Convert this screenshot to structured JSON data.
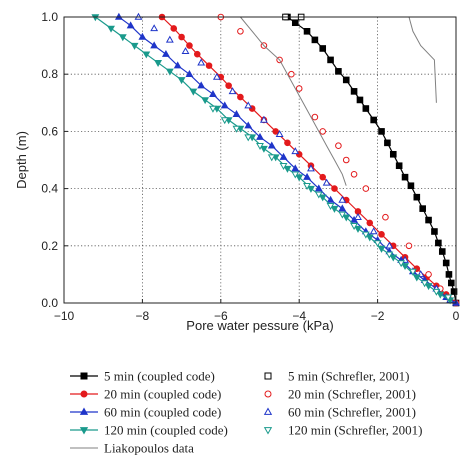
{
  "chart_data": {
    "type": "line",
    "xlabel": "Pore water pessure (kPa)",
    "ylabel": "Depth (m)",
    "xlim": [
      -10,
      0
    ],
    "ylim": [
      0,
      1
    ],
    "xticks": [
      "−10",
      "−8",
      "−6",
      "−4",
      "−2",
      "0"
    ],
    "yticks": [
      "0.0",
      "0.2",
      "0.4",
      "0.6",
      "0.8",
      "1.0"
    ],
    "grid": "dotted",
    "legend_placement": "bottom",
    "series": [
      {
        "name": "5 min (coupled code)",
        "color": "#000000",
        "marker": "square-filled",
        "line": true,
        "x": [
          -4.3,
          -4.1,
          -3.8,
          -3.6,
          -3.4,
          -3.2,
          -3.0,
          -2.8,
          -2.6,
          -2.45,
          -2.3,
          -2.1,
          -1.9,
          -1.75,
          -1.6,
          -1.45,
          -1.3,
          -1.15,
          -1.0,
          -0.85,
          -0.7,
          -0.55,
          -0.45,
          -0.35,
          -0.25,
          -0.18,
          -0.12,
          -0.05,
          0
        ],
        "y": [
          1.0,
          0.98,
          0.95,
          0.92,
          0.89,
          0.85,
          0.81,
          0.78,
          0.74,
          0.71,
          0.68,
          0.64,
          0.6,
          0.56,
          0.52,
          0.48,
          0.44,
          0.41,
          0.37,
          0.33,
          0.29,
          0.25,
          0.21,
          0.18,
          0.14,
          0.1,
          0.07,
          0.04,
          0.0
        ]
      },
      {
        "name": "5 min (Schrefler, 2001)",
        "color": "#000000",
        "marker": "square-open",
        "line": false,
        "x": [
          -4.35,
          -3.95
        ],
        "y": [
          1.0,
          1.0
        ]
      },
      {
        "name": "20 min (coupled code)",
        "color": "#e31a1c",
        "marker": "circle-filled",
        "line": true,
        "x": [
          -7.5,
          -7.2,
          -7.0,
          -6.8,
          -6.6,
          -6.3,
          -6.0,
          -5.8,
          -5.5,
          -5.2,
          -4.9,
          -4.6,
          -4.3,
          -4.0,
          -3.7,
          -3.4,
          -3.1,
          -2.8,
          -2.5,
          -2.2,
          -1.9,
          -1.6,
          -1.3,
          -1.0,
          -0.75,
          -0.5,
          -0.25,
          0
        ],
        "y": [
          1.0,
          0.96,
          0.93,
          0.9,
          0.87,
          0.83,
          0.79,
          0.76,
          0.72,
          0.68,
          0.64,
          0.6,
          0.56,
          0.52,
          0.48,
          0.44,
          0.4,
          0.36,
          0.32,
          0.28,
          0.24,
          0.2,
          0.16,
          0.12,
          0.09,
          0.06,
          0.03,
          0.0
        ]
      },
      {
        "name": "20 min (Schrefler, 2001)",
        "color": "#e31a1c",
        "marker": "circle-open",
        "line": false,
        "x": [
          -6.0,
          -5.5,
          -4.9,
          -4.5,
          -4.2,
          -4.0,
          -3.6,
          -3.4,
          -3.0,
          -2.8,
          -2.6,
          -2.3,
          -1.8,
          -1.2,
          -0.7,
          -0.4,
          -0.2,
          0
        ],
        "y": [
          1.0,
          0.95,
          0.9,
          0.85,
          0.8,
          0.75,
          0.65,
          0.6,
          0.55,
          0.5,
          0.45,
          0.4,
          0.3,
          0.2,
          0.1,
          0.05,
          0.02,
          0.0
        ]
      },
      {
        "name": "60 min (coupled code)",
        "color": "#1f35c9",
        "marker": "triangle-up-filled",
        "line": true,
        "x": [
          -8.6,
          -8.3,
          -8.0,
          -7.7,
          -7.4,
          -7.1,
          -6.8,
          -6.5,
          -6.2,
          -5.9,
          -5.6,
          -5.3,
          -5.0,
          -4.7,
          -4.4,
          -4.1,
          -3.8,
          -3.5,
          -3.2,
          -2.9,
          -2.6,
          -2.3,
          -2.0,
          -1.7,
          -1.4,
          -1.1,
          -0.8,
          -0.5,
          -0.25,
          0
        ],
        "y": [
          1.0,
          0.97,
          0.93,
          0.9,
          0.87,
          0.83,
          0.8,
          0.76,
          0.73,
          0.69,
          0.66,
          0.62,
          0.58,
          0.55,
          0.51,
          0.47,
          0.44,
          0.4,
          0.36,
          0.33,
          0.29,
          0.25,
          0.22,
          0.18,
          0.15,
          0.11,
          0.08,
          0.05,
          0.02,
          0.0
        ]
      },
      {
        "name": "60 min (Schrefler, 2001)",
        "color": "#1f35c9",
        "marker": "triangle-up-open",
        "line": false,
        "x": [
          -8.1,
          -7.7,
          -7.3,
          -6.9,
          -6.5,
          -6.1,
          -5.7,
          -5.3,
          -4.9,
          -4.5,
          -4.1,
          -3.7,
          -3.3,
          -2.9,
          -2.5,
          -2.1,
          -1.7,
          -1.3,
          -0.9,
          -0.5,
          -0.15
        ],
        "y": [
          1.0,
          0.96,
          0.92,
          0.88,
          0.84,
          0.79,
          0.74,
          0.69,
          0.64,
          0.59,
          0.53,
          0.47,
          0.42,
          0.36,
          0.3,
          0.25,
          0.2,
          0.15,
          0.1,
          0.05,
          0.01
        ]
      },
      {
        "name": "120 min (coupled code)",
        "color": "#1a9a8c",
        "marker": "triangle-down-filled",
        "line": true,
        "x": [
          -9.2,
          -8.8,
          -8.5,
          -8.2,
          -7.9,
          -7.6,
          -7.3,
          -7.0,
          -6.7,
          -6.4,
          -6.1,
          -5.8,
          -5.5,
          -5.2,
          -4.9,
          -4.6,
          -4.3,
          -4.0,
          -3.7,
          -3.4,
          -3.1,
          -2.8,
          -2.5,
          -2.2,
          -1.9,
          -1.6,
          -1.3,
          -1.0,
          -0.7,
          -0.4,
          -0.15
        ],
        "y": [
          1.0,
          0.96,
          0.93,
          0.9,
          0.87,
          0.84,
          0.81,
          0.78,
          0.74,
          0.71,
          0.68,
          0.64,
          0.61,
          0.58,
          0.54,
          0.51,
          0.47,
          0.44,
          0.4,
          0.37,
          0.33,
          0.3,
          0.26,
          0.23,
          0.19,
          0.16,
          0.13,
          0.09,
          0.06,
          0.03,
          0.01
        ]
      },
      {
        "name": "120 min (Schrefler, 2001)",
        "color": "#1a9a8c",
        "marker": "triangle-down-open",
        "line": false,
        "x": [
          -6.2,
          -5.9,
          -5.6,
          -5.3,
          -5.0,
          -4.7,
          -4.4,
          -4.1,
          -3.8,
          -3.5,
          -3.2,
          -2.9,
          -2.6,
          -2.3,
          -2.0,
          -1.7,
          -1.4,
          -1.1,
          -0.8,
          -0.5,
          -0.2
        ],
        "y": [
          0.68,
          0.64,
          0.61,
          0.58,
          0.55,
          0.51,
          0.48,
          0.45,
          0.41,
          0.38,
          0.34,
          0.31,
          0.27,
          0.24,
          0.21,
          0.17,
          0.14,
          0.11,
          0.07,
          0.04,
          0.02
        ]
      },
      {
        "name": "Liakopoulos data",
        "color": "#808080",
        "marker": "none",
        "line": true,
        "x": [
          -1.2,
          -1.1,
          -0.9,
          -0.55,
          -0.5
        ],
        "y": [
          1.0,
          0.95,
          0.9,
          0.85,
          0.7
        ]
      },
      {
        "name": "Liakopoulos data",
        "color": "#808080",
        "marker": "none",
        "line": true,
        "x": [
          -5.5,
          -5.2,
          -4.9,
          -4.5,
          -4.1,
          -3.7,
          -3.3,
          -3.1,
          -2.9,
          -2.8
        ],
        "y": [
          1.0,
          0.95,
          0.9,
          0.85,
          0.75,
          0.65,
          0.55,
          0.5,
          0.45,
          0.41
        ]
      }
    ],
    "legend": [
      {
        "label": "5 min (coupled code)",
        "color": "#000000",
        "marker": "square-filled",
        "line": true
      },
      {
        "label": "5 min (Schrefler, 2001)",
        "color": "#000000",
        "marker": "square-open",
        "line": false
      },
      {
        "label": "20 min (coupled code)",
        "color": "#e31a1c",
        "marker": "circle-filled",
        "line": true
      },
      {
        "label": "20 min (Schrefler, 2001)",
        "color": "#e31a1c",
        "marker": "circle-open",
        "line": false
      },
      {
        "label": "60 min (coupled code)",
        "color": "#1f35c9",
        "marker": "triangle-up-filled",
        "line": true
      },
      {
        "label": "60 min (Schrefler, 2001)",
        "color": "#1f35c9",
        "marker": "triangle-up-open",
        "line": false
      },
      {
        "label": "120 min (coupled code)",
        "color": "#1a9a8c",
        "marker": "triangle-down-filled",
        "line": true
      },
      {
        "label": "120 min (Schrefler, 2001)",
        "color": "#1a9a8c",
        "marker": "triangle-down-open",
        "line": false
      },
      {
        "label": "Liakopoulos data",
        "color": "#808080",
        "marker": "none",
        "line": true
      }
    ]
  }
}
